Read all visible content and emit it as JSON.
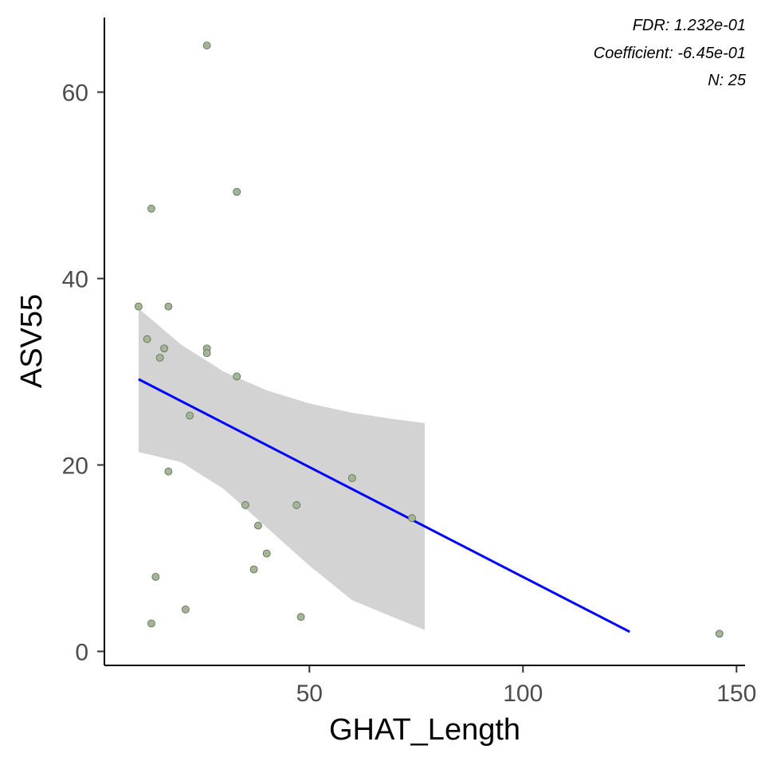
{
  "chart_data": {
    "type": "scatter",
    "xlabel": "GHAT_Length",
    "ylabel": "ASV55",
    "xlim": [
      2,
      152
    ],
    "ylim": [
      -1.5,
      68
    ],
    "x_ticks": [
      50,
      100,
      150
    ],
    "y_ticks": [
      0,
      20,
      40,
      60
    ],
    "grid": false,
    "points": [
      {
        "x": 10,
        "y": 37.0
      },
      {
        "x": 12,
        "y": 33.5
      },
      {
        "x": 13,
        "y": 47.5
      },
      {
        "x": 13,
        "y": 3.0
      },
      {
        "x": 14,
        "y": 8.0
      },
      {
        "x": 15,
        "y": 31.5
      },
      {
        "x": 16,
        "y": 32.5
      },
      {
        "x": 17,
        "y": 37.0
      },
      {
        "x": 17,
        "y": 19.3
      },
      {
        "x": 21,
        "y": 4.5
      },
      {
        "x": 22,
        "y": 25.3
      },
      {
        "x": 26,
        "y": 65.0
      },
      {
        "x": 26,
        "y": 32.5
      },
      {
        "x": 26,
        "y": 32.0
      },
      {
        "x": 33,
        "y": 49.3
      },
      {
        "x": 33,
        "y": 29.5
      },
      {
        "x": 35,
        "y": 15.7
      },
      {
        "x": 37,
        "y": 8.8
      },
      {
        "x": 38,
        "y": 13.5
      },
      {
        "x": 40,
        "y": 10.5
      },
      {
        "x": 47,
        "y": 15.7
      },
      {
        "x": 48,
        "y": 3.7
      },
      {
        "x": 60,
        "y": 18.6
      },
      {
        "x": 74,
        "y": 14.3
      },
      {
        "x": 146,
        "y": 1.9
      }
    ],
    "fit_line": {
      "x": [
        10,
        125
      ],
      "y": [
        29.2,
        2.1
      ],
      "color": "#0000ff"
    },
    "confidence_band": {
      "x": [
        10,
        20,
        30,
        40,
        50,
        60,
        70,
        77
      ],
      "upper": [
        36.8,
        32.9,
        30.0,
        28.0,
        26.6,
        25.6,
        24.9,
        24.5
      ],
      "lower": [
        21.4,
        20.3,
        17.4,
        13.3,
        9.2,
        5.5,
        3.6,
        2.3
      ],
      "color": "#d3d3d3"
    },
    "point_fill": "#a3b596",
    "point_stroke": "#5a6b50"
  },
  "annotations": {
    "fdr": "FDR: 1.232e-01",
    "coefficient": "Coefficient: -6.45e-01",
    "n": "N: 25"
  }
}
